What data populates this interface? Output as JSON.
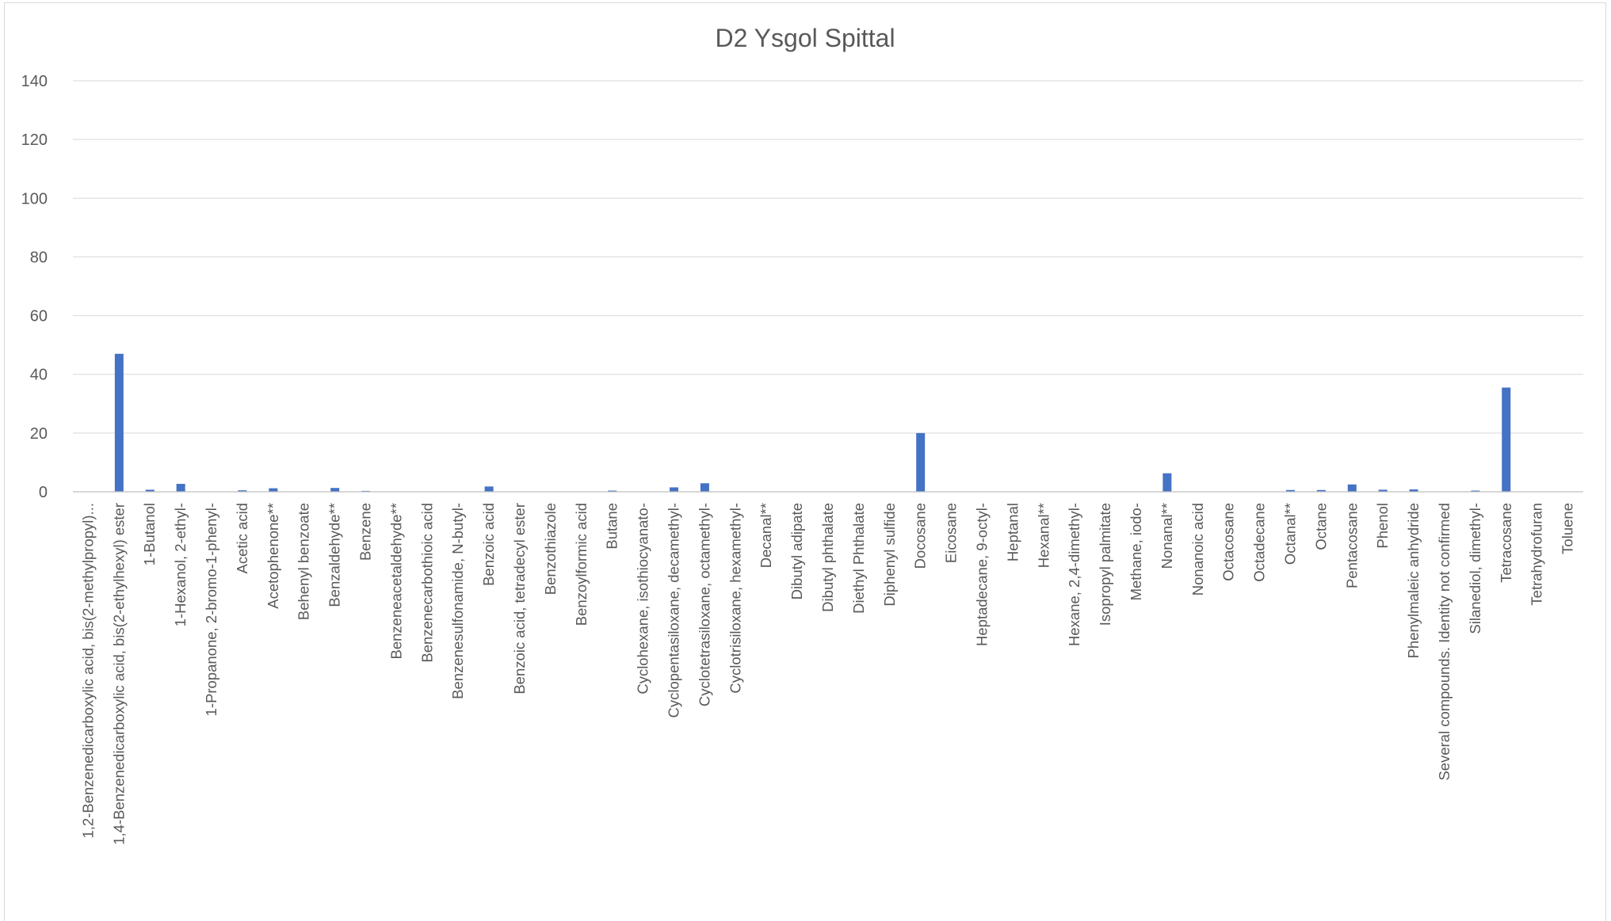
{
  "chart_data": {
    "type": "bar",
    "title": "D2 Ysgol Spittal",
    "xlabel": "",
    "ylabel": "",
    "ylim": [
      0,
      140
    ],
    "yticks": [
      0,
      20,
      40,
      60,
      80,
      100,
      120,
      140
    ],
    "grid": true,
    "legend": "none",
    "bar_color": "#4472c4",
    "categories": [
      "1,2-Benzenedicarboxylic acid, bis(2-methylpropyl)...",
      "1,4-Benzenedicarboxylic acid, bis(2-ethylhexyl) ester",
      "1-Butanol",
      "1-Hexanol, 2-ethyl-",
      "1-Propanone, 2-bromo-1-phenyl-",
      "Acetic acid",
      "Acetophenone**",
      "Behenyl benzoate",
      "Benzaldehyde**",
      "Benzene",
      "Benzeneacetaldehyde**",
      "Benzenecarbothioic acid",
      "Benzenesulfonamide, N-butyl-",
      "Benzoic acid",
      "Benzoic acid, tetradecyl ester",
      "Benzothiazole",
      "Benzoylformic acid",
      "Butane",
      "Cyclohexane, isothiocyanato-",
      "Cyclopentasiloxane, decamethyl-",
      "Cyclotetrasiloxane, octamethyl-",
      "Cyclotrisiloxane, hexamethyl-",
      "Decanal**",
      "Dibutyl adipate",
      "Dibutyl phthalate",
      "Diethyl Phthalate",
      "Diphenyl sulfide",
      "Docosane",
      "Eicosane",
      "Heptadecane, 9-octyl-",
      "Heptanal",
      "Hexanal**",
      "Hexane, 2,4-dimethyl-",
      "Isopropyl palmitate",
      "Methane, iodo-",
      "Nonanal**",
      "Nonanoic acid",
      "Octacosane",
      "Octadecane",
      "Octanal**",
      "Octane",
      "Pentacosane",
      "Phenol",
      "Phenylmaleic anhydride",
      "Several compounds. Identity not confirmed",
      "Silanediol, dimethyl-",
      "Tetracosane",
      "Tetrahydrofuran",
      "Toluene"
    ],
    "values": [
      0,
      47,
      0.7,
      2.7,
      0,
      0.5,
      1.2,
      0,
      1.3,
      0.3,
      0,
      0,
      0,
      1.8,
      0,
      0,
      0,
      0.4,
      0,
      1.5,
      2.9,
      0,
      0,
      0,
      0,
      0,
      0,
      20,
      0,
      0,
      0,
      0,
      0,
      0,
      0,
      6.3,
      0,
      0,
      0,
      0.6,
      0.6,
      2.5,
      0.7,
      0.8,
      0,
      0.4,
      35.5,
      0,
      0
    ]
  }
}
